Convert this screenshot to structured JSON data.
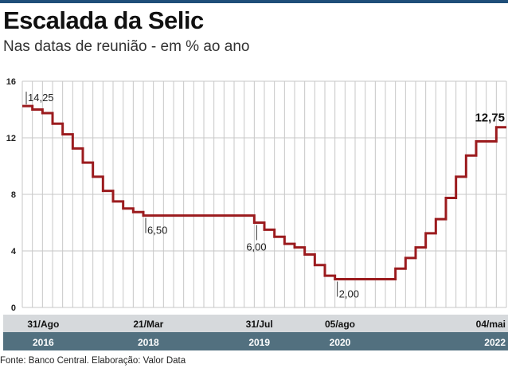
{
  "header": {
    "title": "Escalada da Selic",
    "subtitle": "Nas datas de reunião - em % ao ano"
  },
  "footer": {
    "source": "Fonte: Banco Central. Elaboração: Valor Data"
  },
  "colors": {
    "line": "#9b1b1e",
    "grid": "#c7c7c7",
    "band_top": "#d6d9dc",
    "band_bottom": "#52707f",
    "topbar": "#1f4e79"
  },
  "chart_data": {
    "type": "line",
    "step": true,
    "title": "Escalada da Selic",
    "subtitle": "Nas datas de reunião - em % ao ano",
    "ylim": [
      0,
      16
    ],
    "yticks": [
      "0",
      "4",
      "8",
      "12",
      "16"
    ],
    "grid": true,
    "series": [
      {
        "values": [
          14.25,
          14.0,
          13.75,
          13.0,
          12.25,
          11.25,
          10.25,
          9.25,
          8.25,
          7.5,
          7.0,
          6.75,
          6.5,
          6.5,
          6.5,
          6.5,
          6.5,
          6.5,
          6.5,
          6.5,
          6.5,
          6.5,
          6.5,
          6.0,
          5.5,
          5.0,
          4.5,
          4.25,
          3.75,
          3.0,
          2.25,
          2.0,
          2.0,
          2.0,
          2.0,
          2.0,
          2.0,
          2.75,
          3.5,
          4.25,
          5.25,
          6.25,
          7.75,
          9.25,
          10.75,
          11.75,
          11.75,
          12.75
        ]
      }
    ],
    "x_labels": [
      {
        "date": "31/Ago",
        "year": "2016",
        "index": 0
      },
      {
        "date": "21/Mar",
        "year": "2018",
        "index": 12
      },
      {
        "date": "31/Jul",
        "year": "2019",
        "index": 23
      },
      {
        "date": "05/ago",
        "year": "2020",
        "index": 31
      },
      {
        "date": "04/mai",
        "year": "2022",
        "index": 47
      }
    ],
    "annotations": [
      {
        "text": "14,25",
        "index": 0
      },
      {
        "text": "6,50",
        "index": 12
      },
      {
        "text": "6,00",
        "index": 23
      },
      {
        "text": "2,00",
        "index": 31
      },
      {
        "text": "12,75",
        "index": 47
      }
    ]
  }
}
